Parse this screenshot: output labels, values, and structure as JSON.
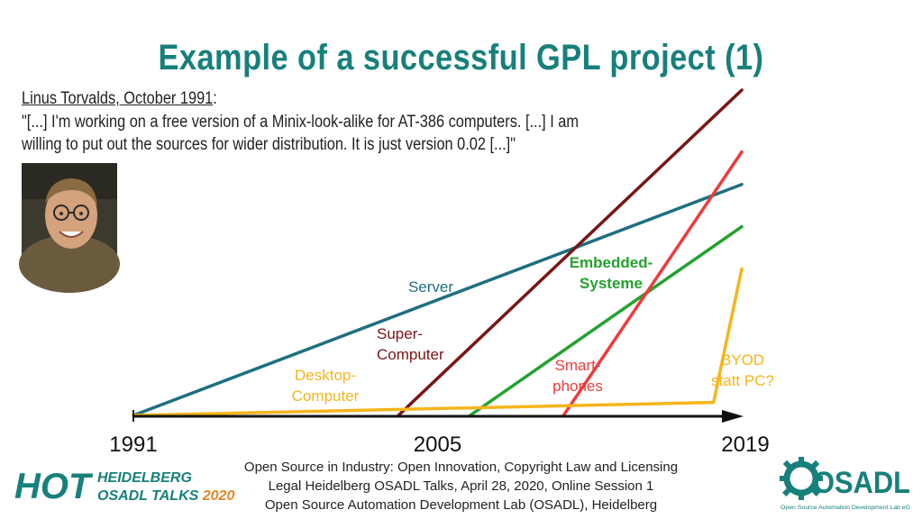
{
  "slide": {
    "title": "Example of a successful GPL project (1)",
    "quote_author": "Linus Torvalds, October 1991",
    "quote_colon": ":",
    "quote_lines": [
      "\"[...] I'm working on a free version of a Minix-look-alike for AT-386 computers. [...] I am",
      "willing to put out the sources for wider distribution. It is just version 0.02 [...]\""
    ],
    "photo_label": "Linus Torvalds photo"
  },
  "footer": {
    "lines": [
      "Open Source in Industry: Open Innovation, Copyright Law and Licensing",
      "Legal Heidelberg OSADL Talks, April 28, 2020, Online Session 1",
      "Open Source Automation Development Lab (OSADL), Heidelberg"
    ]
  },
  "logos": {
    "hot": {
      "big": "HOT",
      "line1": "HEIDELBERG",
      "line2a": "OSADL TALKS ",
      "line2b": "2020"
    },
    "osadl": {
      "name": "OSADL",
      "tagline": "Open Source Automation Development Lab eG"
    }
  },
  "colors": {
    "title": "#17807a",
    "server": "#1f6f80",
    "supercomputer": "#7a1515",
    "embedded": "#22a22e",
    "smartphones": "#ee3b3b",
    "desktop": "#f5b51c",
    "axis": "#111111"
  },
  "chart_data": {
    "type": "line",
    "x_ticks": [
      1991,
      2005,
      2019
    ],
    "xlim": [
      1991,
      2019
    ],
    "y_axis_shown": false,
    "series": [
      {
        "name": "Server",
        "label_lines": [
          "Server"
        ],
        "color": "#1f6f80",
        "points": [
          [
            1991,
            0
          ],
          [
            2019,
            71
          ]
        ]
      },
      {
        "name": "Super-Computer",
        "label_lines": [
          "Super-",
          "Computer"
        ],
        "color": "#7a1515",
        "points": [
          [
            2003.2,
            0
          ],
          [
            2019,
            100
          ]
        ]
      },
      {
        "name": "Embedded-Systeme",
        "label_lines": [
          "Embedded-",
          "Systeme"
        ],
        "color": "#22a22e",
        "bold": true,
        "points": [
          [
            2006.5,
            0
          ],
          [
            2019,
            58
          ]
        ]
      },
      {
        "name": "Smart-phones",
        "label_lines": [
          "Smart-",
          "phones"
        ],
        "color": "#ee3b3b",
        "points": [
          [
            2010.8,
            0
          ],
          [
            2019,
            81
          ]
        ]
      },
      {
        "name": "Desktop-Computer",
        "label_lines": [
          "Desktop-",
          "Computer"
        ],
        "color": "#f5b51c",
        "points": [
          [
            1991,
            0
          ],
          [
            2017.7,
            4
          ],
          [
            2019,
            45
          ]
        ]
      }
    ],
    "annotations": [
      {
        "label_lines": [
          "BYOD",
          "statt PC?"
        ],
        "color": "#f5b51c"
      }
    ]
  }
}
